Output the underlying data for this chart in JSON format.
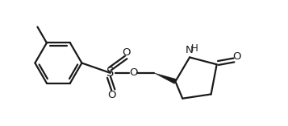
{
  "bg_color": "#ffffff",
  "line_color": "#1a1a1a",
  "line_width": 1.6,
  "font_size": 8.5,
  "figsize": [
    3.57,
    1.57
  ],
  "dpi": 100,
  "xlim": [
    0,
    10
  ],
  "ylim": [
    0,
    4.4
  ]
}
